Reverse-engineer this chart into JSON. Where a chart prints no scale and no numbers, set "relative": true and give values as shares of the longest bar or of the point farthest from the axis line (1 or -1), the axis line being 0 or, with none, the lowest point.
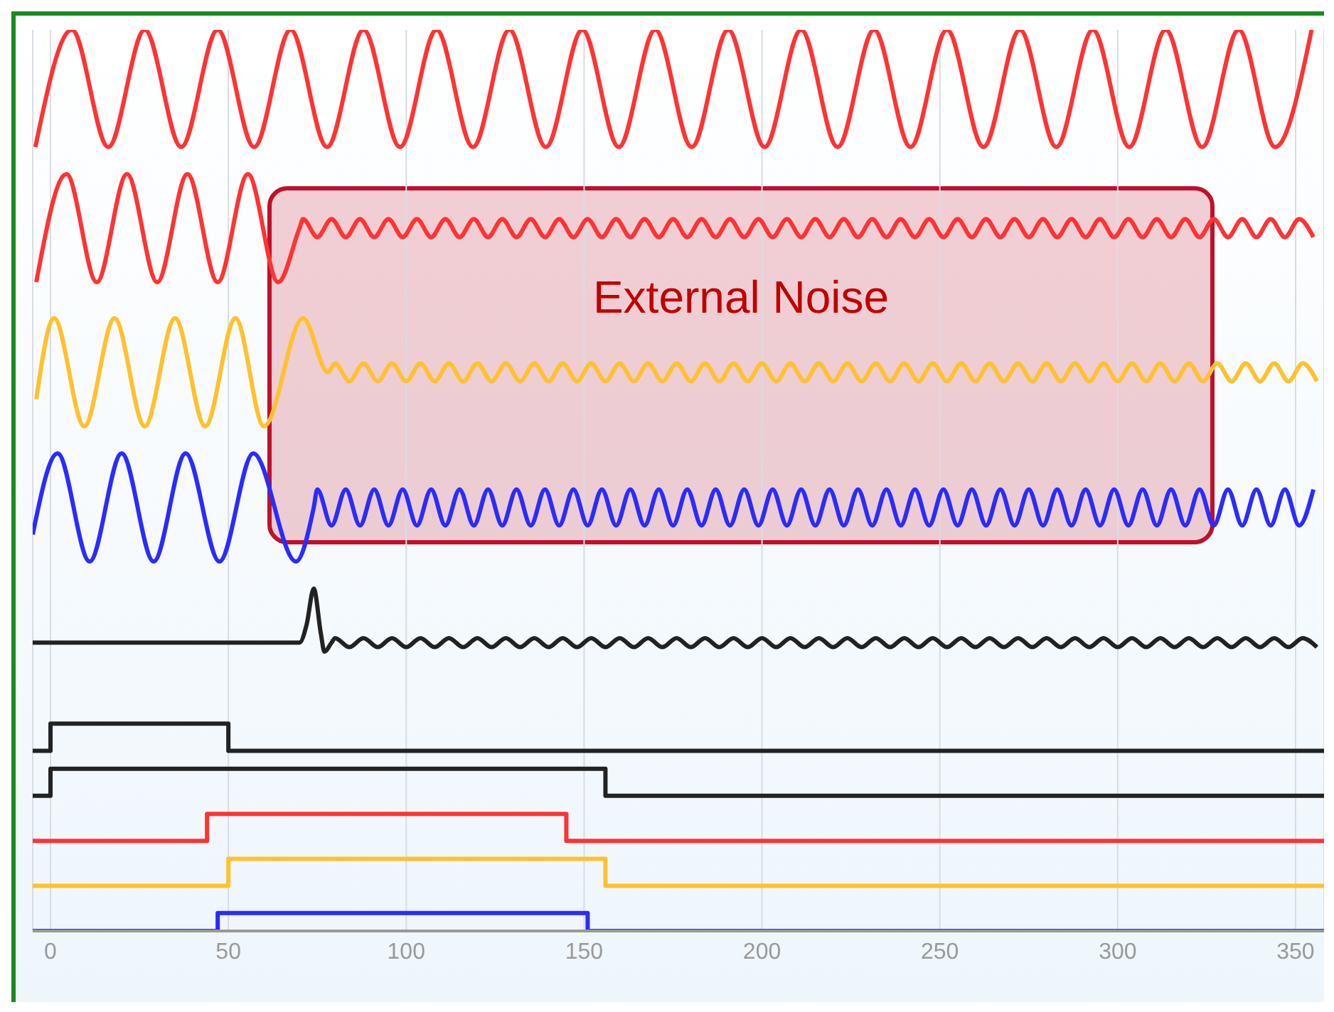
{
  "chart_data": {
    "type": "line",
    "relative": true,
    "xlim": [
      -5,
      358
    ],
    "xticks": [
      0,
      50,
      100,
      150,
      200,
      250,
      300,
      350
    ],
    "grid": "x",
    "marker": "none",
    "tick_labels": "x",
    "annotations": [
      "External Noise"
    ],
    "series": [
      {
        "color": "#ff3333",
        "x": [
          -4.25,
          6,
          16.25,
          26.5,
          36.75,
          47,
          57.25,
          67.5,
          77.75,
          88,
          98.25,
          108.5,
          118.75,
          129,
          139.25,
          149.5,
          159.75,
          170,
          180.25,
          190.5,
          200.75,
          211,
          221.25,
          231.5,
          241.75,
          252,
          262.25,
          272.5,
          282.75,
          293,
          303.25,
          313.5,
          323.75,
          334,
          344.25,
          354.5
        ],
        "values": [
          0.87,
          1,
          0.87,
          1,
          0.87,
          1,
          0.87,
          1,
          0.87,
          1,
          0.87,
          1,
          0.87,
          1,
          0.87,
          1,
          0.87,
          1,
          0.87,
          1,
          0.87,
          1,
          0.87,
          1,
          0.87,
          1,
          0.87,
          1,
          0.87,
          1,
          0.87,
          1,
          0.87,
          1,
          0.87,
          1
        ]
      },
      {
        "color": "#ff3333",
        "x": [
          -4,
          4.5,
          13,
          21.5,
          30,
          38.5,
          47,
          55.5,
          64,
          70,
          71,
          75,
          79,
          83,
          87,
          91,
          95,
          99,
          103,
          107,
          111,
          115,
          119,
          123,
          127,
          131,
          135,
          139,
          143,
          147,
          151,
          155,
          159,
          163,
          167,
          171,
          175,
          179,
          183,
          187,
          191,
          195,
          199,
          203,
          207,
          211,
          215,
          219,
          223,
          227,
          231,
          235,
          239,
          243,
          247,
          251,
          255,
          259,
          263,
          267,
          271,
          275,
          279,
          283,
          287,
          291,
          295,
          299,
          303,
          307,
          311,
          315,
          319,
          323,
          327,
          331,
          335,
          339,
          343,
          347,
          351,
          355
        ],
        "values": [
          0.72,
          0.84,
          0.72,
          0.84,
          0.72,
          0.84,
          0.72,
          0.84,
          0.72,
          0.78,
          0.79,
          0.77,
          0.79,
          0.77,
          0.79,
          0.77,
          0.79,
          0.77,
          0.79,
          0.77,
          0.79,
          0.77,
          0.79,
          0.77,
          0.79,
          0.77,
          0.79,
          0.77,
          0.79,
          0.77,
          0.79,
          0.77,
          0.79,
          0.77,
          0.79,
          0.77,
          0.79,
          0.77,
          0.79,
          0.77,
          0.79,
          0.77,
          0.79,
          0.77,
          0.79,
          0.77,
          0.79,
          0.77,
          0.79,
          0.77,
          0.79,
          0.77,
          0.79,
          0.77,
          0.79,
          0.77,
          0.79,
          0.77,
          0.79,
          0.77,
          0.79,
          0.77,
          0.79,
          0.77,
          0.79,
          0.77,
          0.79,
          0.77,
          0.79,
          0.77,
          0.79,
          0.77,
          0.79,
          0.77,
          0.79,
          0.77,
          0.79,
          0.77,
          0.79,
          0.77,
          0.79,
          0.77
        ]
      },
      {
        "color": "#ffc12e",
        "x": [
          -4,
          1,
          9.5,
          18,
          26.5,
          35,
          43.5,
          52,
          60,
          71,
          78,
          80,
          84,
          88,
          92,
          96,
          100,
          104,
          108,
          112,
          116,
          120,
          124,
          128,
          132,
          136,
          140,
          144,
          148,
          152,
          156,
          160,
          164,
          168,
          172,
          176,
          180,
          184,
          188,
          192,
          196,
          200,
          204,
          208,
          212,
          216,
          220,
          224,
          228,
          232,
          236,
          240,
          244,
          248,
          252,
          256,
          260,
          264,
          268,
          272,
          276,
          280,
          284,
          288,
          292,
          296,
          300,
          304,
          308,
          312,
          316,
          320,
          324,
          328,
          332,
          336,
          340,
          344,
          348,
          352,
          356
        ],
        "values": [
          0.59,
          0.68,
          0.56,
          0.68,
          0.56,
          0.68,
          0.56,
          0.68,
          0.56,
          0.68,
          0.62,
          0.63,
          0.61,
          0.63,
          0.61,
          0.63,
          0.61,
          0.63,
          0.61,
          0.63,
          0.61,
          0.63,
          0.61,
          0.63,
          0.61,
          0.63,
          0.61,
          0.63,
          0.61,
          0.63,
          0.61,
          0.63,
          0.61,
          0.63,
          0.61,
          0.63,
          0.61,
          0.63,
          0.61,
          0.63,
          0.61,
          0.63,
          0.61,
          0.63,
          0.61,
          0.63,
          0.61,
          0.63,
          0.61,
          0.63,
          0.61,
          0.63,
          0.61,
          0.63,
          0.61,
          0.63,
          0.61,
          0.63,
          0.61,
          0.63,
          0.61,
          0.63,
          0.61,
          0.63,
          0.61,
          0.63,
          0.61,
          0.63,
          0.61,
          0.63,
          0.61,
          0.63,
          0.61,
          0.63,
          0.61,
          0.63,
          0.61,
          0.63,
          0.61,
          0.63,
          0.61
        ]
      },
      {
        "color": "#2b2bff",
        "x": [
          -5,
          2,
          11,
          20,
          29,
          38,
          47.5,
          57,
          69,
          74,
          75,
          79,
          83,
          87,
          91,
          95,
          99,
          103,
          107,
          111,
          115,
          119,
          123,
          127,
          131,
          135,
          139,
          143,
          147,
          151,
          155,
          159,
          163,
          167,
          171,
          175,
          179,
          183,
          187,
          191,
          195,
          199,
          203,
          207,
          211,
          215,
          219,
          223,
          227,
          231,
          235,
          239,
          243,
          247,
          251,
          255,
          259,
          263,
          267,
          271,
          275,
          279,
          283,
          287,
          291,
          295,
          299,
          303,
          307,
          311,
          315,
          319,
          323,
          327,
          331,
          335,
          339,
          343,
          347,
          351,
          355
        ],
        "values": [
          0.44,
          0.53,
          0.41,
          0.53,
          0.41,
          0.53,
          0.41,
          0.53,
          0.41,
          0.47,
          0.49,
          0.45,
          0.49,
          0.45,
          0.49,
          0.45,
          0.49,
          0.45,
          0.49,
          0.45,
          0.49,
          0.45,
          0.49,
          0.45,
          0.49,
          0.45,
          0.49,
          0.45,
          0.49,
          0.45,
          0.49,
          0.45,
          0.49,
          0.45,
          0.49,
          0.45,
          0.49,
          0.45,
          0.49,
          0.45,
          0.49,
          0.45,
          0.49,
          0.45,
          0.49,
          0.45,
          0.49,
          0.45,
          0.49,
          0.45,
          0.49,
          0.45,
          0.49,
          0.45,
          0.49,
          0.45,
          0.49,
          0.45,
          0.49,
          0.45,
          0.49,
          0.45,
          0.49,
          0.45,
          0.49,
          0.45,
          0.49,
          0.45,
          0.49,
          0.45,
          0.49,
          0.45,
          0.49,
          0.45,
          0.49,
          0.45,
          0.49,
          0.45,
          0.49,
          0.45,
          0.49
        ]
      },
      {
        "color": "#222222",
        "x": [
          -5,
          70,
          72,
          74,
          76,
          77,
          79,
          80,
          84,
          88,
          92,
          96,
          100,
          104,
          108,
          112,
          116,
          120,
          124,
          128,
          132,
          136,
          140,
          144,
          148,
          152,
          156,
          160,
          164,
          168,
          172,
          176,
          180,
          184,
          188,
          192,
          196,
          200,
          204,
          208,
          212,
          216,
          220,
          224,
          228,
          232,
          236,
          240,
          244,
          248,
          252,
          256,
          260,
          264,
          268,
          272,
          276,
          280,
          284,
          288,
          292,
          296,
          300,
          304,
          308,
          312,
          316,
          320,
          324,
          328,
          332,
          336,
          340,
          344,
          348,
          352,
          356
        ],
        "values": [
          0.32,
          0.32,
          0.34,
          0.38,
          0.33,
          0.31,
          0.32,
          0.325,
          0.315,
          0.325,
          0.315,
          0.325,
          0.315,
          0.325,
          0.315,
          0.325,
          0.315,
          0.325,
          0.315,
          0.325,
          0.315,
          0.325,
          0.315,
          0.325,
          0.315,
          0.325,
          0.315,
          0.325,
          0.315,
          0.325,
          0.315,
          0.325,
          0.315,
          0.325,
          0.315,
          0.325,
          0.315,
          0.325,
          0.315,
          0.325,
          0.315,
          0.325,
          0.315,
          0.325,
          0.315,
          0.325,
          0.315,
          0.325,
          0.315,
          0.325,
          0.315,
          0.325,
          0.315,
          0.325,
          0.315,
          0.325,
          0.315,
          0.325,
          0.315,
          0.325,
          0.315,
          0.325,
          0.315,
          0.325,
          0.315,
          0.325,
          0.315,
          0.325,
          0.315,
          0.325,
          0.315,
          0.325,
          0.315,
          0.325,
          0.315,
          0.325,
          0.315
        ]
      },
      {
        "type": "step",
        "color": "#222222",
        "x": [
          -5,
          0,
          50,
          358
        ],
        "values": [
          0.2,
          0.23,
          0.2,
          0.2
        ]
      },
      {
        "type": "step",
        "color": "#222222",
        "x": [
          -5,
          0,
          156,
          358
        ],
        "values": [
          0.15,
          0.18,
          0.15,
          0.15
        ]
      },
      {
        "type": "step",
        "color": "#ff3333",
        "x": [
          -5,
          44,
          145,
          358
        ],
        "values": [
          0.1,
          0.13,
          0.1,
          0.1
        ]
      },
      {
        "type": "step",
        "color": "#ffc12e",
        "x": [
          -5,
          50,
          156,
          358
        ],
        "values": [
          0.05,
          0.08,
          0.05,
          0.05
        ]
      },
      {
        "type": "step",
        "color": "#2b2bff",
        "x": [
          -5,
          47,
          151,
          358
        ],
        "values": [
          0,
          0.02,
          0,
          0
        ]
      }
    ]
  }
}
